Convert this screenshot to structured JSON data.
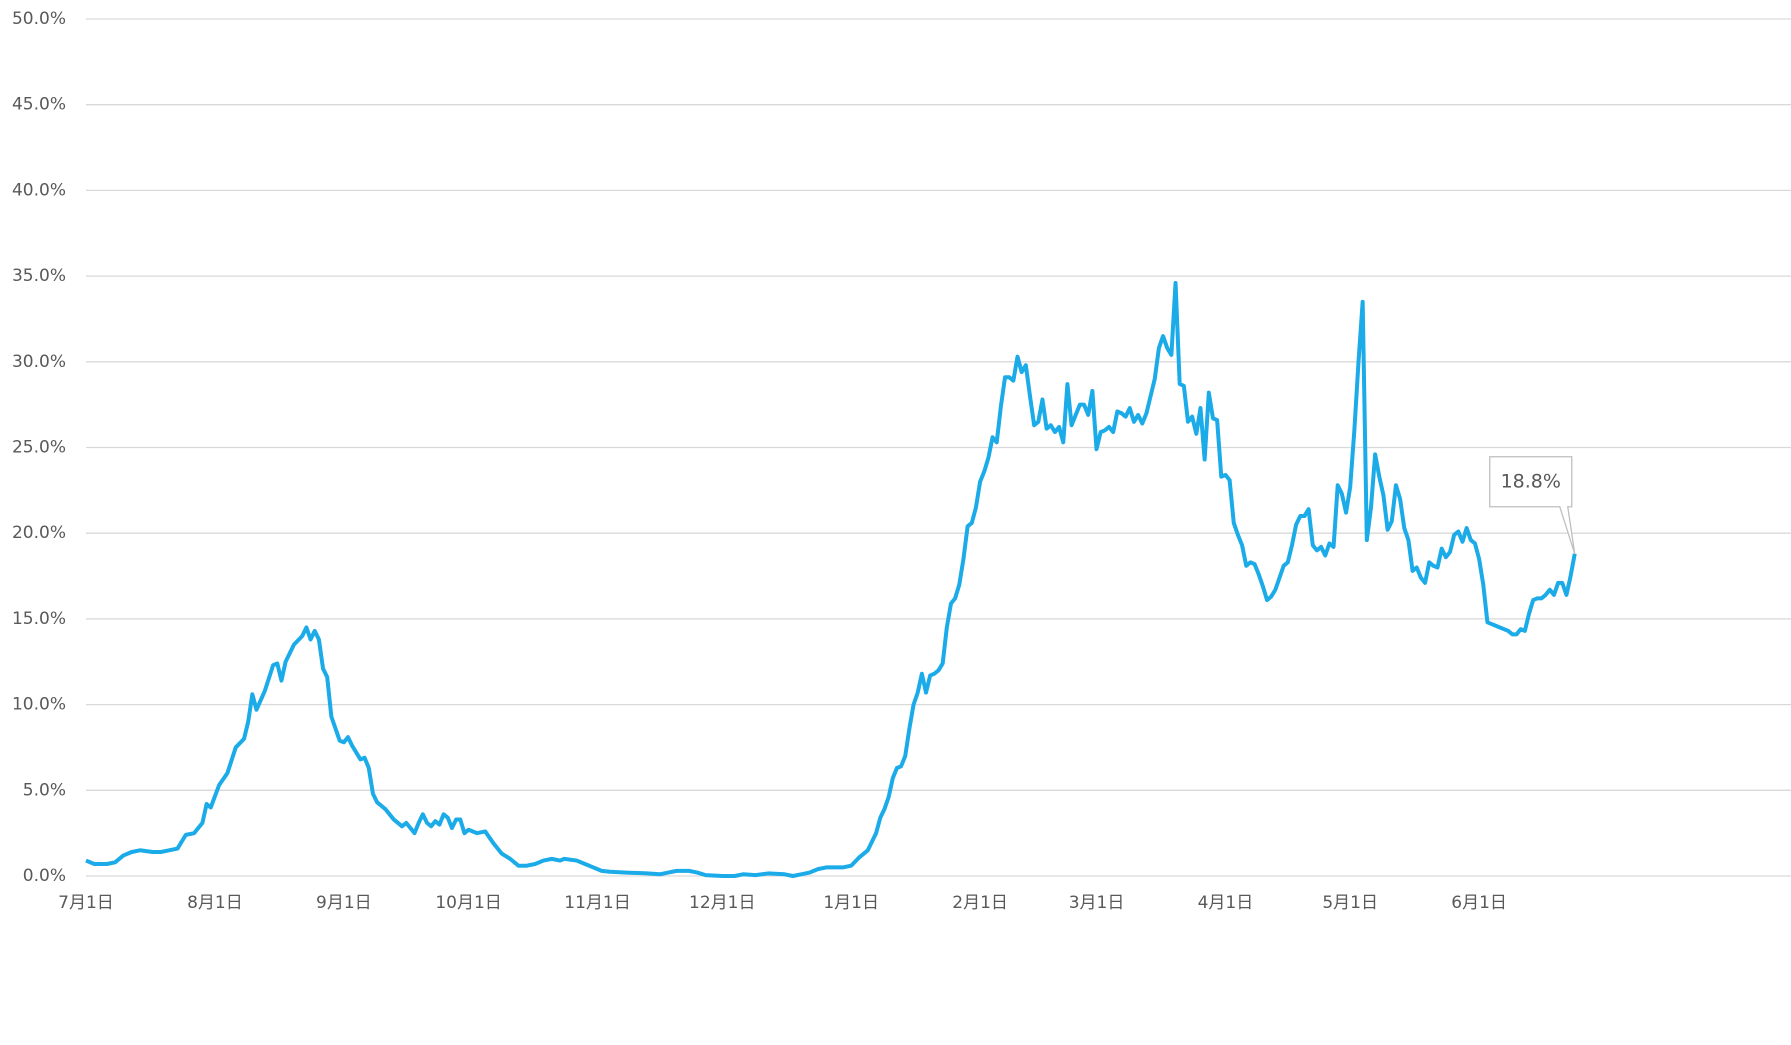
{
  "chart_data": {
    "type": "line",
    "xlim": [
      0,
      410
    ],
    "xticks": [
      {
        "value": 0,
        "label": "7月1日"
      },
      {
        "value": 31,
        "label": "8月1日"
      },
      {
        "value": 62,
        "label": "9月1日"
      },
      {
        "value": 92,
        "label": "10月1日"
      },
      {
        "value": 123,
        "label": "11月1日"
      },
      {
        "value": 153,
        "label": "12月1日"
      },
      {
        "value": 184,
        "label": "1月1日"
      },
      {
        "value": 215,
        "label": "2月1日"
      },
      {
        "value": 243,
        "label": "3月1日"
      },
      {
        "value": 274,
        "label": "4月1日"
      },
      {
        "value": 304,
        "label": "5月1日"
      },
      {
        "value": 335,
        "label": "6月1日"
      }
    ],
    "ylim": [
      0,
      50
    ],
    "yticks": [
      {
        "value": 0,
        "label": "0.0%"
      },
      {
        "value": 5,
        "label": "5.0%"
      },
      {
        "value": 10,
        "label": "10.0%"
      },
      {
        "value": 15,
        "label": "15.0%"
      },
      {
        "value": 20,
        "label": "20.0%"
      },
      {
        "value": 25,
        "label": "25.0%"
      },
      {
        "value": 30,
        "label": "30.0%"
      },
      {
        "value": 35,
        "label": "35.0%"
      },
      {
        "value": 40,
        "label": "40.0%"
      },
      {
        "value": 45,
        "label": "45.0%"
      },
      {
        "value": 50,
        "label": "50.0%"
      }
    ],
    "grid": true,
    "x": [
      0,
      2,
      5,
      7,
      9,
      11,
      13,
      16,
      18,
      20,
      22,
      24,
      26,
      28,
      29,
      30,
      32,
      34,
      36,
      38,
      39,
      40,
      41,
      43,
      45,
      46,
      47,
      48,
      50,
      52,
      53,
      54,
      55,
      56,
      57,
      58,
      59,
      61,
      62,
      63,
      64,
      66,
      67,
      68,
      69,
      70,
      72,
      74,
      76,
      77,
      79,
      80,
      81,
      82,
      83,
      84,
      85,
      86,
      87,
      88,
      89,
      90,
      91,
      92,
      94,
      96,
      98,
      100,
      102,
      104,
      106,
      108,
      110,
      112,
      114,
      115,
      118,
      120,
      122,
      124,
      126,
      130,
      135,
      138,
      140,
      142,
      145,
      147,
      149,
      153,
      156,
      158,
      161,
      164,
      168,
      170,
      172,
      174,
      176,
      178,
      180,
      182,
      184,
      186,
      188,
      190,
      191,
      192,
      193,
      194,
      195,
      196,
      197,
      198,
      199,
      200,
      201,
      202,
      203,
      204,
      205,
      206,
      207,
      208,
      209,
      210,
      211,
      212,
      213,
      214,
      215,
      216,
      217,
      218,
      219,
      220,
      221,
      222,
      223,
      224,
      225,
      226,
      227,
      228,
      229,
      230,
      231,
      232,
      233,
      234,
      235,
      236,
      237,
      238,
      239,
      240,
      241,
      242,
      243,
      244,
      245,
      246,
      247,
      248,
      249,
      250,
      251,
      252,
      253,
      254,
      255,
      256,
      257,
      258,
      259,
      260,
      261,
      262,
      263,
      264,
      265,
      266,
      267,
      268,
      269,
      270,
      271,
      272,
      273,
      274,
      275,
      276,
      277,
      278,
      279,
      280,
      281,
      282,
      283,
      284,
      285,
      286,
      287,
      288,
      289,
      290,
      291,
      292,
      293,
      294,
      295,
      296,
      297,
      298,
      299,
      300,
      301,
      302,
      303,
      304,
      305,
      306,
      307,
      308,
      309,
      310,
      311,
      312,
      313,
      314,
      315,
      316,
      317,
      318,
      319,
      320,
      321,
      322,
      323,
      324,
      325,
      326,
      327,
      328,
      329,
      330,
      331,
      332,
      333,
      334,
      335,
      336,
      337,
      338,
      339,
      340,
      341,
      342,
      343,
      344,
      345,
      346,
      347,
      348,
      349,
      350,
      351,
      352,
      353,
      354,
      355,
      356,
      357,
      358
    ],
    "series": [
      {
        "color": "#1aabe8",
        "values": [
          0.9,
          0.7,
          0.7,
          0.8,
          1.2,
          1.4,
          1.5,
          1.4,
          1.4,
          1.5,
          1.6,
          2.4,
          2.5,
          3.1,
          4.2,
          4.0,
          5.3,
          6.0,
          7.5,
          8.0,
          9.0,
          10.6,
          9.7,
          10.8,
          12.3,
          12.4,
          11.4,
          12.5,
          13.5,
          14.0,
          14.5,
          13.8,
          14.3,
          13.8,
          12.1,
          11.6,
          9.3,
          7.9,
          7.8,
          8.1,
          7.6,
          6.8,
          6.9,
          6.3,
          4.8,
          4.3,
          3.9,
          3.3,
          2.9,
          3.1,
          2.5,
          3.1,
          3.6,
          3.1,
          2.9,
          3.2,
          3.0,
          3.6,
          3.4,
          2.8,
          3.3,
          3.3,
          2.5,
          2.7,
          2.5,
          2.6,
          1.9,
          1.3,
          1.0,
          0.6,
          0.6,
          0.7,
          0.9,
          1.0,
          0.9,
          1.0,
          0.9,
          0.7,
          0.5,
          0.3,
          0.25,
          0.2,
          0.15,
          0.1,
          0.2,
          0.3,
          0.3,
          0.2,
          0.05,
          0,
          0,
          0.1,
          0.05,
          0.15,
          0.1,
          0,
          0.1,
          0.2,
          0.4,
          0.5,
          0.5,
          0.5,
          0.6,
          1.1,
          1.5,
          2.5,
          3.4,
          3.9,
          4.6,
          5.7,
          6.3,
          6.4,
          7.0,
          8.6,
          10.0,
          10.7,
          11.8,
          10.7,
          11.7,
          11.8,
          12.0,
          12.4,
          14.5,
          15.9,
          16.2,
          17.0,
          18.5,
          20.4,
          20.6,
          21.5,
          23.0,
          23.6,
          24.4,
          25.6,
          25.3,
          27.4,
          29.1,
          29.1,
          28.9,
          30.3,
          29.4,
          29.8,
          28.0,
          26.3,
          26.5,
          27.8,
          26.1,
          26.3,
          25.9,
          26.2,
          25.3,
          28.7,
          26.3,
          26.9,
          27.5,
          27.5,
          26.9,
          28.3,
          24.9,
          25.9,
          26.0,
          26.2,
          25.9,
          27.1,
          27.0,
          26.8,
          27.3,
          26.5,
          26.9,
          26.4,
          27.0,
          28.0,
          29.0,
          30.8,
          31.5,
          30.8,
          30.4,
          34.6,
          28.7,
          28.6,
          26.5,
          26.8,
          25.8,
          27.3,
          24.3,
          28.2,
          26.7,
          26.6,
          23.3,
          23.4,
          23.1,
          20.6,
          19.9,
          19.3,
          18.1,
          18.3,
          18.2,
          17.6,
          16.9,
          16.1,
          16.3,
          16.7,
          17.4,
          18.1,
          18.3,
          19.3,
          20.5,
          21.0,
          21.0,
          21.4,
          19.3,
          19.0,
          19.2,
          18.7,
          19.4,
          19.2,
          22.8,
          22.3,
          21.2,
          22.7,
          26.0,
          30.0,
          33.5,
          19.6,
          21.5,
          24.6,
          23.3,
          22.2,
          20.2,
          20.7,
          22.8,
          22.0,
          20.3,
          19.6,
          17.8,
          18.0,
          17.4,
          17.1,
          18.3,
          18.1,
          18.0,
          19.1,
          18.6,
          18.9,
          19.9,
          20.1,
          19.5,
          20.3,
          19.6,
          19.4,
          18.5,
          17.0,
          14.8,
          14.7,
          14.6,
          14.5,
          14.4,
          14.3,
          14.1,
          14.1,
          14.4,
          14.3,
          15.3,
          16.1,
          16.2,
          16.2,
          16.4,
          16.7,
          16.4,
          17.1,
          17.1,
          16.4,
          17.5,
          18.8
        ]
      }
    ],
    "annotations": [
      {
        "x": 358,
        "y": 18.8,
        "label": "18.8%"
      }
    ]
  }
}
